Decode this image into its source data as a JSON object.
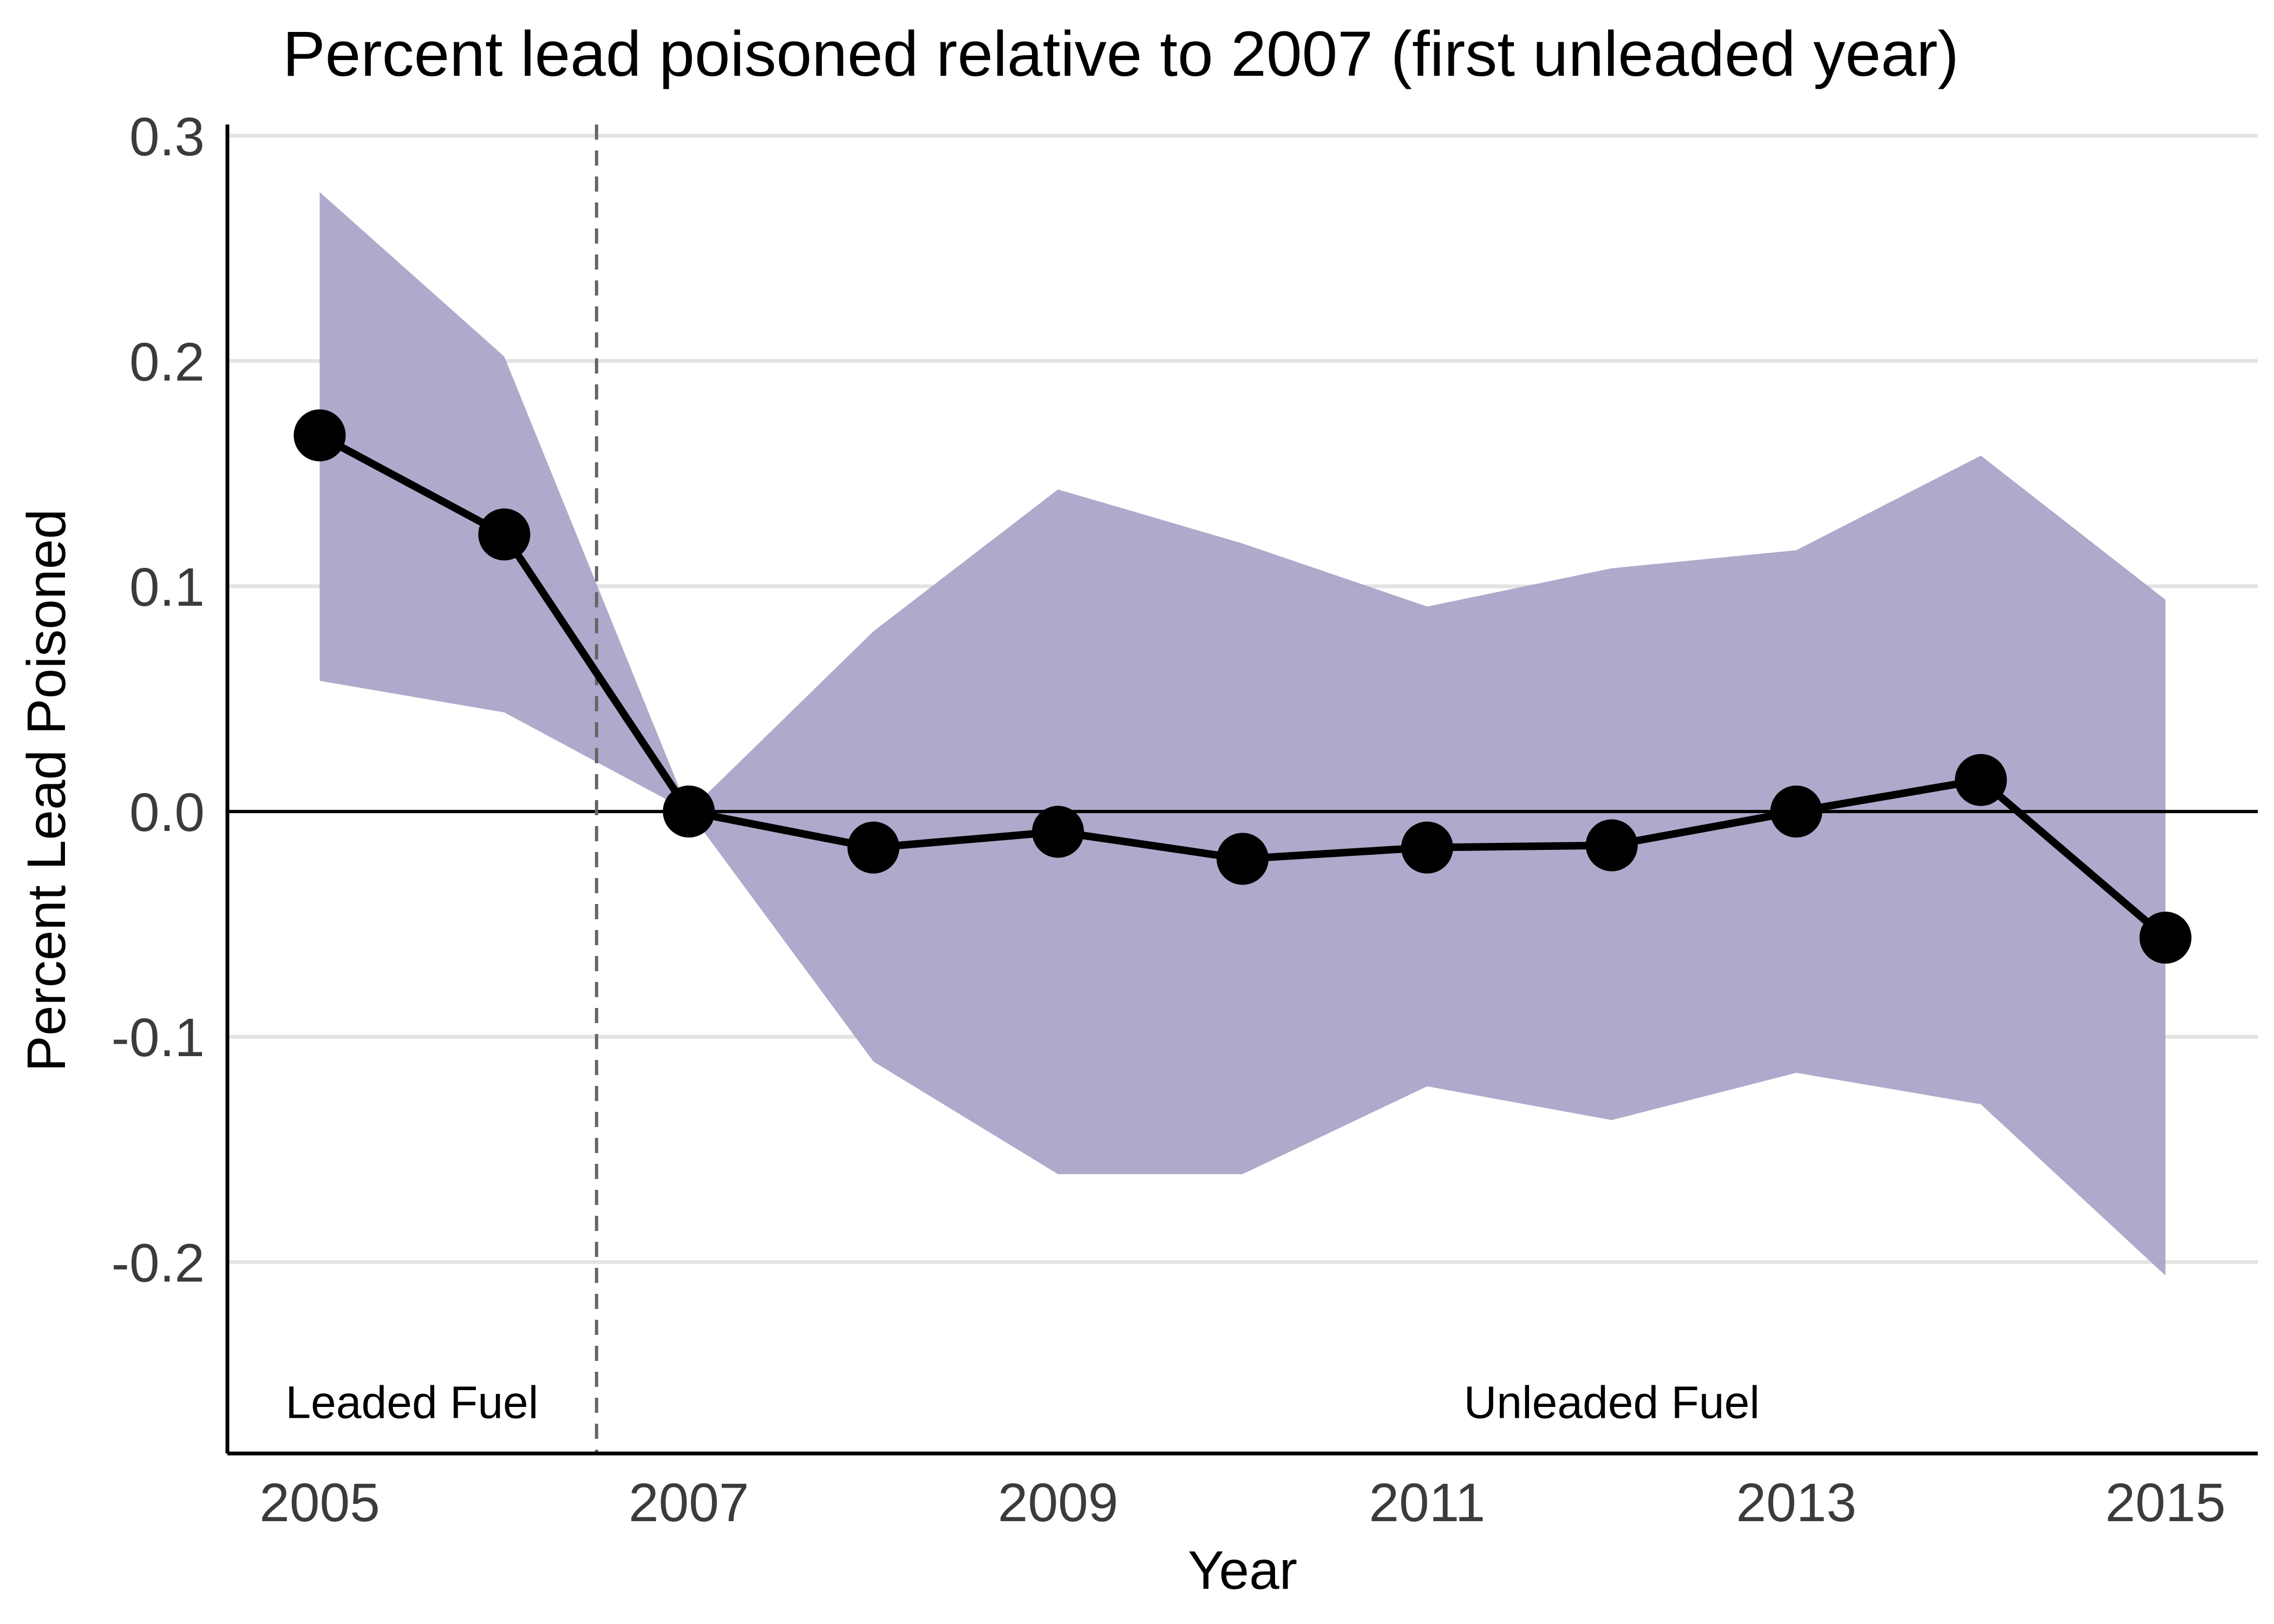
{
  "chart_data": {
    "type": "line",
    "title": "Percent lead poisoned relative to 2007 (first unleaded year)",
    "xlabel": "Year",
    "ylabel": "Percent Lead Poisoned",
    "xlim": [
      2004.5,
      2015.5
    ],
    "ylim": [
      -0.285,
      0.305
    ],
    "x_ticks": [
      2005,
      2007,
      2009,
      2011,
      2013,
      2015
    ],
    "x_tick_labels": [
      "2005",
      "2007",
      "2009",
      "2011",
      "2013",
      "2015"
    ],
    "y_ticks": [
      0.3,
      0.2,
      0.1,
      0.0,
      -0.1,
      -0.2
    ],
    "y_tick_labels": [
      "0.3",
      "0.2",
      "0.1",
      "0.0",
      "-0.1",
      "-0.2"
    ],
    "grid": "horizontal",
    "series": [
      {
        "x": [
          2005,
          2006,
          2007,
          2008,
          2009,
          2010,
          2011,
          2012,
          2013,
          2014,
          2015
        ],
        "values": [
          0.167,
          0.123,
          0.0,
          -0.016,
          -0.009,
          -0.021,
          -0.016,
          -0.015,
          0.0,
          0.014,
          -0.056
        ],
        "ci_lower": [
          0.058,
          0.044,
          0.0,
          -0.111,
          -0.161,
          -0.161,
          -0.122,
          -0.137,
          -0.116,
          -0.13,
          -0.206
        ],
        "ci_upper": [
          0.275,
          0.202,
          0.0,
          0.08,
          0.143,
          0.119,
          0.091,
          0.108,
          0.116,
          0.158,
          0.094
        ]
      }
    ],
    "reference_lines": {
      "horizontal_y": 0.0,
      "vertical_dashed_x": 2006.5
    },
    "annotations": [
      {
        "text": "Leaded Fuel",
        "x": 2005.5,
        "y": -0.262
      },
      {
        "text": "Unleaded Fuel",
        "x": 2012.0,
        "y": -0.262
      }
    ],
    "colors": {
      "ribbon": "#a7a3c7",
      "line": "#000000",
      "grid": "#e3e3e3",
      "vline": "#666666"
    }
  }
}
